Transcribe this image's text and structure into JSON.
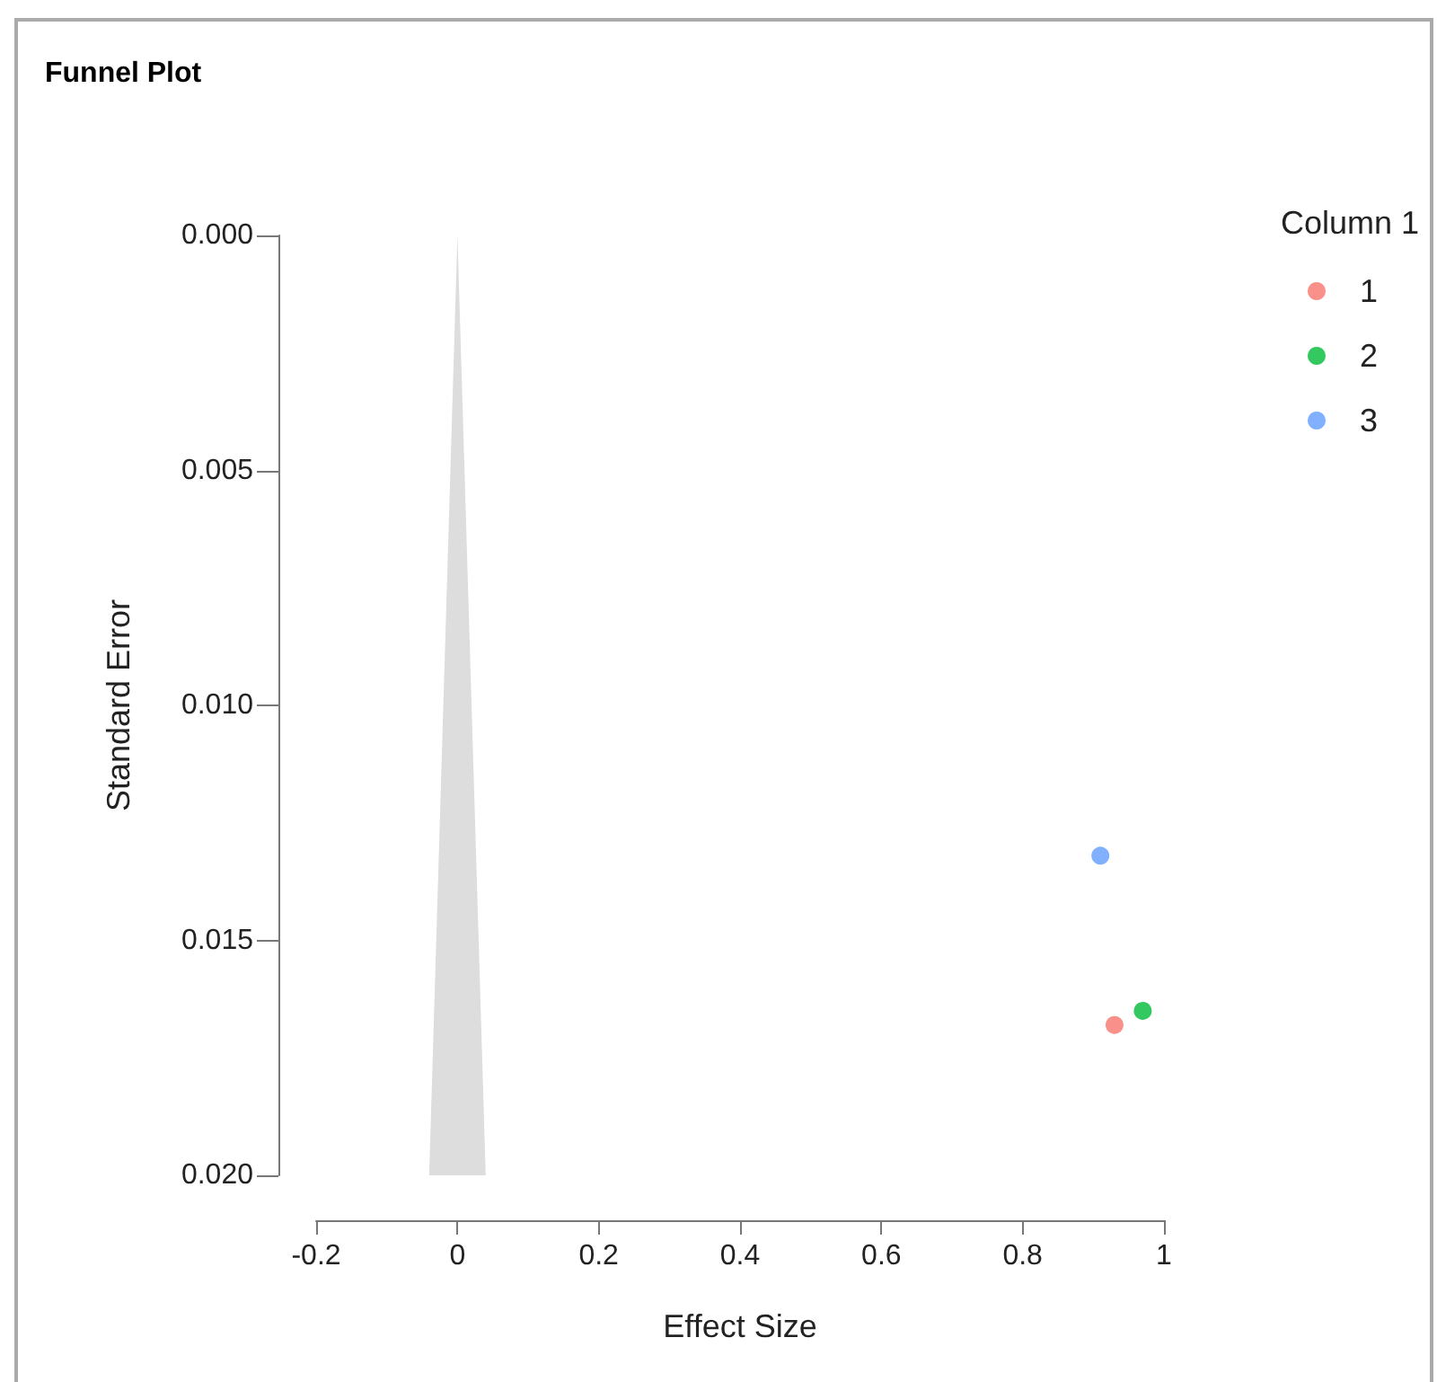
{
  "chart_data": {
    "type": "scatter",
    "title": "Funnel Plot",
    "xlabel": "Effect Size",
    "ylabel": "Standard Error",
    "legend_title": "Column 1",
    "legend": "top right",
    "grid": false,
    "xlim": [
      -0.2,
      1
    ],
    "xticks": [
      -0.2,
      0,
      0.2,
      0.4,
      0.6,
      0.8,
      1
    ],
    "ylim": [
      0.02,
      0
    ],
    "yticks": [
      {
        "value": 0,
        "label": "0.000"
      },
      {
        "value": 0.005,
        "label": "0.005"
      },
      {
        "value": 0.01,
        "label": "0.010"
      },
      {
        "value": 0.015,
        "label": "0.015"
      },
      {
        "value": 0.02,
        "label": "0.020"
      }
    ],
    "series": [
      {
        "type": "area",
        "color": "#dddddd",
        "x": [
          -0.04,
          0,
          0.04
        ],
        "values": [
          0.02,
          0,
          0.02
        ]
      },
      {
        "name": "1",
        "color": "#f8766d",
        "x": [
          0.93
        ],
        "values": [
          0.0168
        ]
      },
      {
        "name": "2",
        "color": "#00ba38",
        "x": [
          0.97
        ],
        "values": [
          0.0165
        ]
      },
      {
        "name": "3",
        "color": "#619cff",
        "x": [
          0.91
        ],
        "values": [
          0.0132
        ]
      }
    ]
  }
}
